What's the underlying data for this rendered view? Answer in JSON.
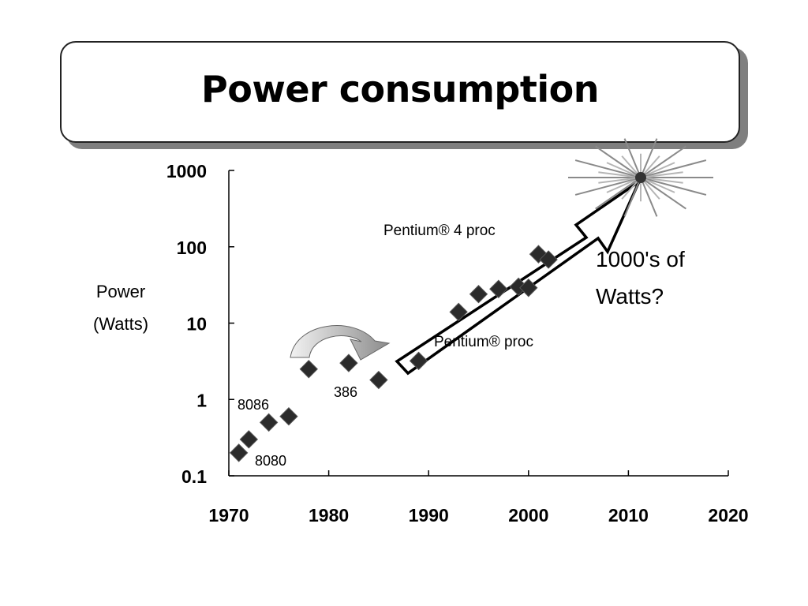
{
  "slide": {
    "title": "Power consumption"
  },
  "chart_data": {
    "type": "scatter",
    "title": "",
    "xlabel": "",
    "ylabel": "Power\n(Watts)",
    "y_scale": "log",
    "xlim": [
      1970,
      2020
    ],
    "ylim": [
      0.1,
      1000
    ],
    "x_ticks": [
      "1970",
      "1980",
      "1990",
      "2000",
      "2010",
      "2020"
    ],
    "y_ticks": [
      "0.1",
      "1",
      "10",
      "100",
      "1000"
    ],
    "marker": "diamond",
    "marker_color": "#2b2b2b",
    "grid": false,
    "points": [
      {
        "x": 1971,
        "y": 0.2
      },
      {
        "x": 1972,
        "y": 0.3
      },
      {
        "x": 1974,
        "y": 0.5
      },
      {
        "x": 1976,
        "y": 0.6
      },
      {
        "x": 1978,
        "y": 2.5
      },
      {
        "x": 1982,
        "y": 3
      },
      {
        "x": 1985,
        "y": 1.8
      },
      {
        "x": 1989,
        "y": 3.2
      },
      {
        "x": 1993,
        "y": 14
      },
      {
        "x": 1995,
        "y": 24
      },
      {
        "x": 1997,
        "y": 28
      },
      {
        "x": 1999,
        "y": 30
      },
      {
        "x": 2000,
        "y": 29
      },
      {
        "x": 2001,
        "y": 80
      },
      {
        "x": 2002,
        "y": 68
      }
    ],
    "annotations": {
      "label_8086": "8086",
      "label_8080": "8080",
      "label_386": "386",
      "label_pentium": "Pentium® proc",
      "label_pentium4": "Pentium® 4 proc",
      "callout_line1": "1000's of",
      "callout_line2": "Watts?"
    }
  }
}
